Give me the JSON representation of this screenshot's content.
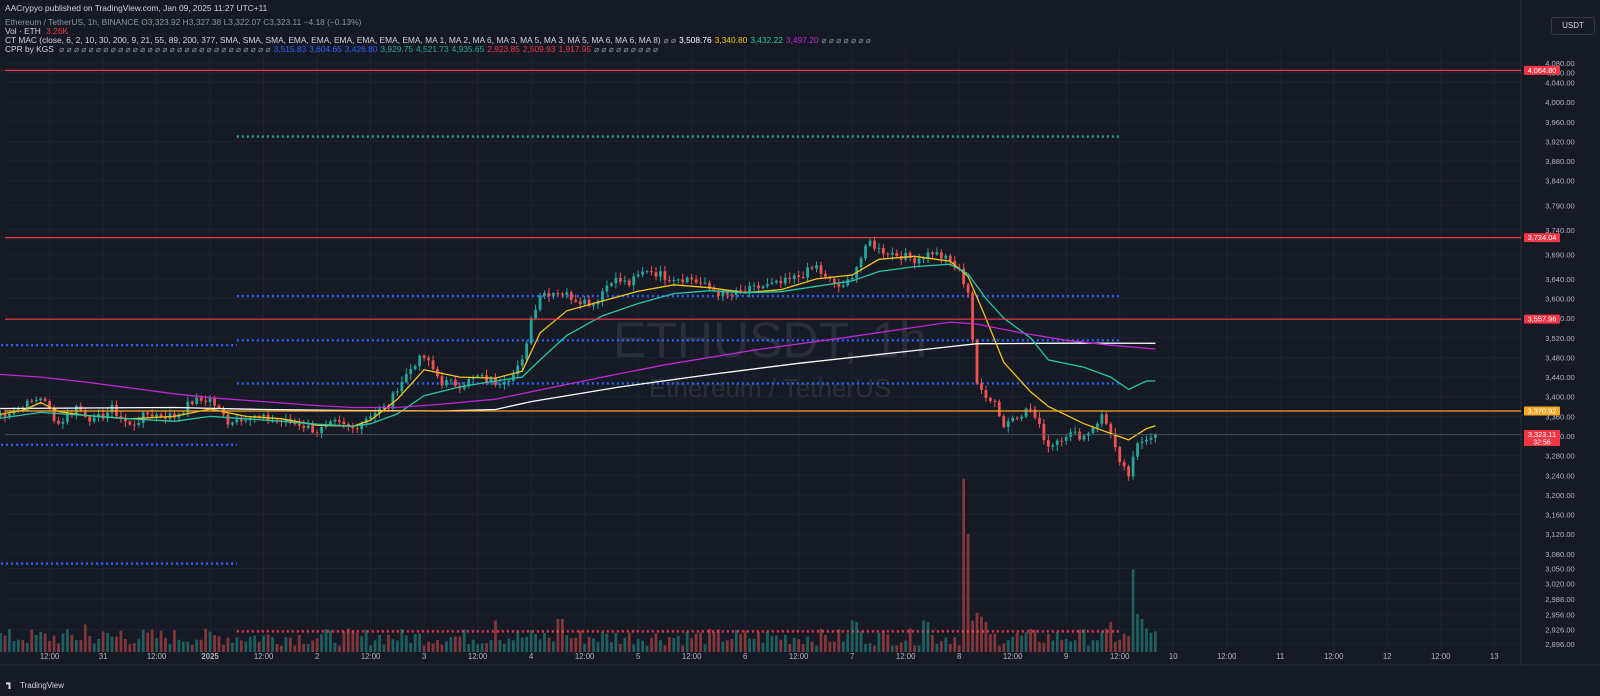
{
  "header": {
    "published": "AACrypyo published on TradingView.com, Jan 09, 2025 11:27 UTC+11",
    "symbol_line": "Ethereum / TetherUS, 1h, BINANCE O3,323.92 H3,327.38 L3,322.07 C3,323.11 −4.18 (−0.13%)",
    "vol_label": "Vol · ETH",
    "vol_value": "3.26K",
    "ma_label": "CT MAC (close, 6, 2, 10, 30, 200, 9, 21, 55, 89, 200, 377, SMA, SMA, SMA, EMA, EMA, EMA, EMA, EMA, EMA, MA 1, MA 2, MA 6, MA 3, MA 5, MA 3, MA 5, MA 6, MA 6, MA 8)",
    "ma_values": [
      {
        "text": "⌀ ⌀",
        "color": "#8f95a3"
      },
      {
        "text": "3,508.76",
        "color": "#ffffff"
      },
      {
        "text": "3,340.80",
        "color": "#f5c518"
      },
      {
        "text": "3,432.22",
        "color": "#26c6a6"
      },
      {
        "text": "3,497.20",
        "color": "#c026d3"
      },
      {
        "text": "⌀ ⌀ ⌀ ⌀ ⌀ ⌀ ⌀",
        "color": "#8f95a3"
      }
    ],
    "cpr_label": "CPR by KGS",
    "cpr_dots": "⌀ ⌀ ⌀ ⌀ ⌀ ⌀ ⌀ ⌀ ⌀ ⌀ ⌀ ⌀ ⌀ ⌀ ⌀ ⌀ ⌀ ⌀ ⌀ ⌀ ⌀ ⌀ ⌀ ⌀ ⌀ ⌀ ⌀ ⌀ ⌀",
    "cpr_values": [
      {
        "text": "3,515.83",
        "color": "#2962ff"
      },
      {
        "text": "3,604.65",
        "color": "#2962ff"
      },
      {
        "text": "3,426.80",
        "color": "#2962ff"
      },
      {
        "text": "3,929.75",
        "color": "#26a69a"
      },
      {
        "text": "4,521.73",
        "color": "#26a69a"
      },
      {
        "text": "4,935.65",
        "color": "#26a69a"
      },
      {
        "text": "2,923.85",
        "color": "#f23645"
      },
      {
        "text": "2,509.93",
        "color": "#f23645"
      },
      {
        "text": "1,917.95",
        "color": "#f23645"
      },
      {
        "text": "⌀ ⌀ ⌀ ⌀ ⌀ ⌀ ⌀ ⌀ ⌀",
        "color": "#8f95a3"
      }
    ]
  },
  "currency": "USDT",
  "footer": "TradingView",
  "chart_data": {
    "type": "candlestick",
    "symbol": "ETHUSDT",
    "interval": "1h",
    "description": "Ethereum / TetherUS",
    "ylim": [
      2880,
      4090
    ],
    "y_ticks": [
      4080,
      4060,
      4040,
      4000,
      3960,
      3920,
      3880,
      3840,
      3790,
      3740,
      3690,
      3640,
      3600,
      3560,
      3520,
      3480,
      3440,
      3400,
      3360,
      3320,
      3280,
      3240,
      3200,
      3160,
      3120,
      3080,
      3050,
      3020,
      2988,
      2956,
      2926,
      2896
    ],
    "x_ticks": [
      {
        "label": "12:00",
        "t": 12
      },
      {
        "label": "31",
        "t": 24
      },
      {
        "label": "12:00",
        "t": 36
      },
      {
        "label": "2025",
        "t": 48
      },
      {
        "label": "12:00",
        "t": 60
      },
      {
        "label": "2",
        "t": 72
      },
      {
        "label": "12:00",
        "t": 84
      },
      {
        "label": "3",
        "t": 96
      },
      {
        "label": "12:00",
        "t": 108
      },
      {
        "label": "4",
        "t": 120
      },
      {
        "label": "12:00",
        "t": 132
      },
      {
        "label": "5",
        "t": 144
      },
      {
        "label": "12:00",
        "t": 156
      },
      {
        "label": "6",
        "t": 168
      },
      {
        "label": "12:00",
        "t": 180
      },
      {
        "label": "7",
        "t": 192
      },
      {
        "label": "12:00",
        "t": 204
      },
      {
        "label": "8",
        "t": 216
      },
      {
        "label": "12:00",
        "t": 228
      },
      {
        "label": "9",
        "t": 240
      },
      {
        "label": "12:00",
        "t": 252
      },
      {
        "label": "10",
        "t": 264
      },
      {
        "label": "12:00",
        "t": 276
      },
      {
        "label": "11",
        "t": 288
      },
      {
        "label": "12:00",
        "t": 300
      },
      {
        "label": "12",
        "t": 312
      },
      {
        "label": "12:00",
        "t": 324
      },
      {
        "label": "13",
        "t": 336
      }
    ],
    "x_range": [
      2,
      342
    ],
    "key_prices": [
      [
        0,
        3360
      ],
      [
        6,
        3380
      ],
      [
        10,
        3400
      ],
      [
        14,
        3345
      ],
      [
        18,
        3380
      ],
      [
        22,
        3350
      ],
      [
        26,
        3375
      ],
      [
        30,
        3340
      ],
      [
        34,
        3365
      ],
      [
        40,
        3360
      ],
      [
        44,
        3390
      ],
      [
        48,
        3395
      ],
      [
        52,
        3350
      ],
      [
        56,
        3360
      ],
      [
        60,
        3355
      ],
      [
        64,
        3350
      ],
      [
        68,
        3345
      ],
      [
        72,
        3330
      ],
      [
        76,
        3345
      ],
      [
        80,
        3335
      ],
      [
        84,
        3365
      ],
      [
        88,
        3380
      ],
      [
        90,
        3420
      ],
      [
        94,
        3470
      ],
      [
        96,
        3480
      ],
      [
        100,
        3430
      ],
      [
        104,
        3425
      ],
      [
        108,
        3440
      ],
      [
        112,
        3430
      ],
      [
        116,
        3445
      ],
      [
        118,
        3470
      ],
      [
        120,
        3560
      ],
      [
        122,
        3610
      ],
      [
        126,
        3615
      ],
      [
        130,
        3600
      ],
      [
        134,
        3590
      ],
      [
        138,
        3640
      ],
      [
        142,
        3630
      ],
      [
        146,
        3660
      ],
      [
        150,
        3645
      ],
      [
        156,
        3640
      ],
      [
        160,
        3620
      ],
      [
        164,
        3605
      ],
      [
        168,
        3615
      ],
      [
        172,
        3625
      ],
      [
        176,
        3630
      ],
      [
        180,
        3645
      ],
      [
        184,
        3665
      ],
      [
        186,
        3640
      ],
      [
        190,
        3620
      ],
      [
        192,
        3650
      ],
      [
        196,
        3715
      ],
      [
        198,
        3700
      ],
      [
        202,
        3690
      ],
      [
        206,
        3680
      ],
      [
        210,
        3695
      ],
      [
        214,
        3675
      ],
      [
        216,
        3655
      ],
      [
        218,
        3615
      ],
      [
        220,
        3420
      ],
      [
        224,
        3390
      ],
      [
        226,
        3340
      ],
      [
        228,
        3360
      ],
      [
        232,
        3375
      ],
      [
        236,
        3300
      ],
      [
        240,
        3325
      ],
      [
        244,
        3320
      ],
      [
        248,
        3360
      ],
      [
        250,
        3330
      ],
      [
        252,
        3260
      ],
      [
        254,
        3240
      ],
      [
        256,
        3300
      ],
      [
        258,
        3320
      ],
      [
        260,
        3323.11
      ]
    ],
    "volume": {
      "spikes": [
        [
          217,
          220
        ],
        [
          218,
          150
        ],
        [
          219,
          40
        ],
        [
          220,
          50
        ],
        [
          221,
          45
        ],
        [
          222,
          38
        ],
        [
          250,
          38
        ],
        [
          255,
          105
        ],
        [
          256,
          48
        ],
        [
          257,
          42
        ],
        [
          258,
          30
        ],
        [
          126,
          42
        ],
        [
          127,
          42
        ],
        [
          112,
          40
        ],
        [
          20,
          35
        ],
        [
          28,
          27
        ],
        [
          208,
          40
        ],
        [
          209,
          38
        ],
        [
          192,
          40
        ],
        [
          193,
          38
        ]
      ],
      "max": 235
    },
    "series": [
      {
        "name": "MA 200",
        "color": "#ffffff",
        "points": [
          [
            0,
            3376
          ],
          [
            40,
            3378
          ],
          [
            60,
            3374
          ],
          [
            80,
            3372
          ],
          [
            100,
            3371
          ],
          [
            112,
            3374
          ],
          [
            120,
            3390
          ],
          [
            140,
            3420
          ],
          [
            160,
            3445
          ],
          [
            180,
            3468
          ],
          [
            200,
            3488
          ],
          [
            212,
            3500
          ],
          [
            220,
            3508
          ],
          [
            240,
            3509
          ],
          [
            260,
            3508.76
          ]
        ]
      },
      {
        "name": "EMA 10",
        "color": "#f5c518",
        "points": [
          [
            0,
            3363
          ],
          [
            6,
            3372
          ],
          [
            10,
            3388
          ],
          [
            14,
            3370
          ],
          [
            20,
            3362
          ],
          [
            30,
            3355
          ],
          [
            40,
            3360
          ],
          [
            48,
            3375
          ],
          [
            56,
            3360
          ],
          [
            64,
            3355
          ],
          [
            72,
            3342
          ],
          [
            80,
            3340
          ],
          [
            84,
            3352
          ],
          [
            90,
            3395
          ],
          [
            96,
            3455
          ],
          [
            104,
            3440
          ],
          [
            112,
            3438
          ],
          [
            118,
            3452
          ],
          [
            122,
            3530
          ],
          [
            128,
            3575
          ],
          [
            136,
            3595
          ],
          [
            144,
            3615
          ],
          [
            152,
            3628
          ],
          [
            160,
            3622
          ],
          [
            168,
            3612
          ],
          [
            176,
            3618
          ],
          [
            184,
            3640
          ],
          [
            192,
            3648
          ],
          [
            198,
            3680
          ],
          [
            206,
            3686
          ],
          [
            214,
            3676
          ],
          [
            218,
            3645
          ],
          [
            222,
            3560
          ],
          [
            226,
            3470
          ],
          [
            232,
            3410
          ],
          [
            236,
            3380
          ],
          [
            244,
            3345
          ],
          [
            250,
            3325
          ],
          [
            254,
            3312
          ],
          [
            258,
            3335
          ],
          [
            260,
            3340.8
          ]
        ]
      },
      {
        "name": "EMA 21",
        "color": "#26c6a6",
        "points": [
          [
            0,
            3355
          ],
          [
            10,
            3368
          ],
          [
            20,
            3362
          ],
          [
            30,
            3355
          ],
          [
            40,
            3350
          ],
          [
            48,
            3360
          ],
          [
            56,
            3355
          ],
          [
            64,
            3350
          ],
          [
            72,
            3344
          ],
          [
            80,
            3340
          ],
          [
            84,
            3345
          ],
          [
            90,
            3365
          ],
          [
            96,
            3402
          ],
          [
            104,
            3420
          ],
          [
            112,
            3432
          ],
          [
            118,
            3440
          ],
          [
            122,
            3475
          ],
          [
            128,
            3525
          ],
          [
            136,
            3565
          ],
          [
            144,
            3590
          ],
          [
            152,
            3610
          ],
          [
            160,
            3616
          ],
          [
            168,
            3612
          ],
          [
            176,
            3614
          ],
          [
            184,
            3625
          ],
          [
            192,
            3636
          ],
          [
            198,
            3655
          ],
          [
            206,
            3665
          ],
          [
            214,
            3670
          ],
          [
            218,
            3650
          ],
          [
            222,
            3600
          ],
          [
            226,
            3560
          ],
          [
            232,
            3520
          ],
          [
            236,
            3475
          ],
          [
            244,
            3460
          ],
          [
            250,
            3440
          ],
          [
            254,
            3415
          ],
          [
            258,
            3432
          ],
          [
            260,
            3432.22
          ]
        ]
      },
      {
        "name": "EMA 200",
        "color": "#c026d3",
        "points": [
          [
            0,
            3446
          ],
          [
            10,
            3440
          ],
          [
            20,
            3430
          ],
          [
            30,
            3418
          ],
          [
            40,
            3406
          ],
          [
            48,
            3398
          ],
          [
            60,
            3390
          ],
          [
            72,
            3382
          ],
          [
            80,
            3378
          ],
          [
            90,
            3378
          ],
          [
            100,
            3385
          ],
          [
            112,
            3395
          ],
          [
            120,
            3410
          ],
          [
            136,
            3440
          ],
          [
            150,
            3465
          ],
          [
            170,
            3495
          ],
          [
            190,
            3520
          ],
          [
            205,
            3540
          ],
          [
            214,
            3552
          ],
          [
            220,
            3548
          ],
          [
            230,
            3530
          ],
          [
            240,
            3515
          ],
          [
            250,
            3505
          ],
          [
            260,
            3497.2
          ]
        ]
      }
    ],
    "levels": [
      {
        "price": 4064.8,
        "color": "#f23645",
        "style": "solid",
        "label": "4,064.80"
      },
      {
        "price": 3724.04,
        "color": "#f23645",
        "style": "solid",
        "label": "3,724.04"
      },
      {
        "price": 3557.96,
        "color": "#f23645",
        "style": "solid",
        "label": "3,557.96"
      },
      {
        "price": 3370.92,
        "color": "#f5a623",
        "style": "solid",
        "label": "3,370.92"
      },
      {
        "price": 3323.11,
        "color": "#555b68",
        "style": "thin",
        "label": "3,323.11",
        "sublabel": "32:56"
      }
    ],
    "cpr_segments": [
      {
        "t0": 0,
        "t1": 54,
        "price": 3505,
        "color": "#2962ff"
      },
      {
        "t0": 0,
        "t1": 54,
        "price": 3302,
        "color": "#2962ff"
      },
      {
        "t0": 0,
        "t1": 54,
        "price": 3060,
        "color": "#2962ff"
      },
      {
        "t0": 54,
        "t1": 252,
        "price": 3930,
        "color": "#26a69a"
      },
      {
        "t0": 54,
        "t1": 252,
        "price": 3605,
        "color": "#2962ff"
      },
      {
        "t0": 54,
        "t1": 252,
        "price": 3515,
        "color": "#2962ff"
      },
      {
        "t0": 54,
        "t1": 252,
        "price": 3427,
        "color": "#2962ff"
      },
      {
        "t0": 54,
        "t1": 252,
        "price": 2922,
        "color": "#f23645"
      }
    ],
    "watermark": {
      "main": "ETHUSDT, 1h",
      "sub": "Ethereum / TetherUS"
    }
  }
}
